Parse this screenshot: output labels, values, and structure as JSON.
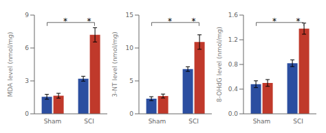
{
  "chart_data": [
    {
      "type": "bar",
      "ylabel": "MDA level (nmol/mg)",
      "categories": [
        "Sham",
        "SCI"
      ],
      "series": [
        {
          "color": "#2B4EA0",
          "values": [
            1.55,
            3.2
          ],
          "errors": [
            0.22,
            0.22
          ]
        },
        {
          "color": "#C0392B",
          "values": [
            1.65,
            7.2
          ],
          "errors": [
            0.22,
            0.65
          ]
        }
      ],
      "ylim": [
        0,
        9
      ],
      "yticks": [
        0,
        3,
        6,
        9
      ],
      "grid": false,
      "annotations": [
        "*",
        "*"
      ]
    },
    {
      "type": "bar",
      "ylabel": "3-NT level (nmol/mg)",
      "categories": [
        "Sham",
        "SCI"
      ],
      "series": [
        {
          "color": "#2B4EA0",
          "values": [
            2.3,
            6.8
          ],
          "errors": [
            0.3,
            0.35
          ]
        },
        {
          "color": "#C0392B",
          "values": [
            2.7,
            10.9
          ],
          "errors": [
            0.3,
            1.1
          ]
        }
      ],
      "ylim": [
        0,
        15
      ],
      "yticks": [
        0,
        5,
        10,
        15
      ],
      "grid": false,
      "annotations": [
        "*",
        "*"
      ]
    },
    {
      "type": "bar",
      "ylabel": "8-OHdG level (nmol/mg)",
      "categories": [
        "Sham",
        "SCI"
      ],
      "series": [
        {
          "color": "#2B4EA0",
          "values": [
            0.48,
            0.82
          ],
          "errors": [
            0.055,
            0.055
          ]
        },
        {
          "color": "#C0392B",
          "values": [
            0.5,
            1.38
          ],
          "errors": [
            0.055,
            0.09
          ]
        }
      ],
      "ylim": [
        0,
        1.6
      ],
      "yticks": [
        {
          "value": 0,
          "label": "0.0"
        },
        0.4,
        0.8,
        1.2,
        1.6
      ],
      "grid": false,
      "annotations": [
        "*",
        "*"
      ]
    }
  ]
}
